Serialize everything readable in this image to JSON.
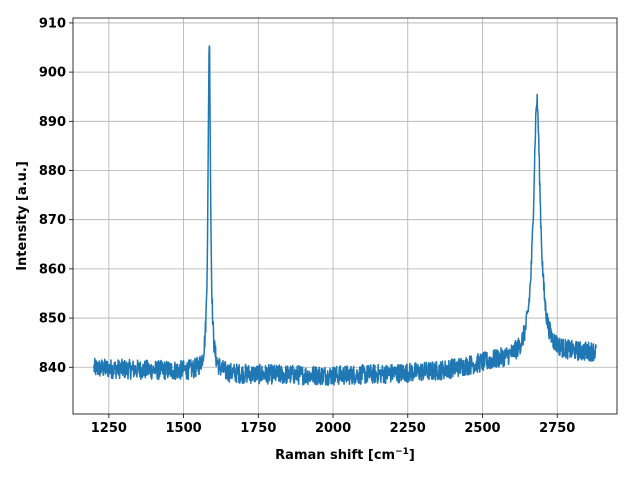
{
  "chart_data": {
    "type": "line",
    "title": "",
    "xlabel": "Raman shift [cm",
    "xlabel_superscript": "−1",
    "xlabel_suffix": "]",
    "ylabel": "Intensity [a.u.]",
    "xlim": [
      1130,
      2950
    ],
    "ylim": [
      830.5,
      911
    ],
    "xticks": [
      1250,
      1500,
      1750,
      2000,
      2250,
      2500,
      2750
    ],
    "yticks": [
      840,
      850,
      860,
      870,
      880,
      890,
      900,
      910
    ],
    "grid": true,
    "line_color": "#1f77b4",
    "series": [
      {
        "x_start": 1200,
        "x_end": 2880,
        "baseline": [
          [
            1200,
            839.8
          ],
          [
            1300,
            839.6
          ],
          [
            1400,
            839.4
          ],
          [
            1500,
            839.2
          ],
          [
            1560,
            839.0
          ],
          [
            1650,
            838.6
          ],
          [
            1800,
            838.5
          ],
          [
            2000,
            838.3
          ],
          [
            2200,
            838.7
          ],
          [
            2350,
            839.2
          ],
          [
            2450,
            840.2
          ],
          [
            2550,
            841.2
          ],
          [
            2620,
            841.6
          ],
          [
            2760,
            842.6
          ],
          [
            2880,
            843.0
          ]
        ],
        "peaks": [
          {
            "center": 1586,
            "height": 67.5,
            "width": 5
          },
          {
            "center": 2682,
            "height": 52.0,
            "width": 14
          }
        ],
        "noise_amplitude": 2.0
      }
    ]
  }
}
